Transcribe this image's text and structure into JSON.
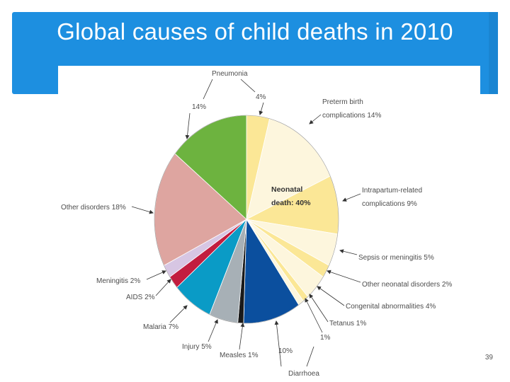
{
  "title": "Global causes of child deaths in 2010",
  "page_number": "39",
  "chart_data": {
    "type": "pie",
    "title": "Global causes of child deaths in 2010",
    "center_label_line1": "Neonatal",
    "center_label_line2": "death: 40%",
    "slices": [
      {
        "name": "Pneumonia (neonatal)",
        "value": 4,
        "color": "#fbe796",
        "pct_label": "4%",
        "label": "Pneumonia"
      },
      {
        "name": "Preterm birth complications",
        "value": 14,
        "color": "#fdf6dd",
        "label_line1": "Preterm birth",
        "label_line2": "complications 14%"
      },
      {
        "name": "Intrapartum-related complications",
        "value": 9,
        "color": "#fbe796",
        "label_line1": "Intrapartum-related",
        "label_line2": "complications 9%"
      },
      {
        "name": "Sepsis or meningitis",
        "value": 5,
        "color": "#fdf6dd",
        "label": "Sepsis or meningitis 5%"
      },
      {
        "name": "Other neonatal disorders",
        "value": 2,
        "color": "#fbe796",
        "label": "Other neonatal disorders 2%"
      },
      {
        "name": "Congenital abnormalities",
        "value": 4,
        "color": "#fdf6dd",
        "label": "Congenital abnormalities 4%"
      },
      {
        "name": "Tetanus",
        "value": 1,
        "color": "#fbe796",
        "label": "Tetanus 1%"
      },
      {
        "name": "Diarrhoea (neonatal)",
        "value": 1,
        "color": "#fdf6dd",
        "pct_label": "1%"
      },
      {
        "name": "Diarrhoea",
        "value": 10,
        "color": "#0b4f9e",
        "pct_label": "10%",
        "label": "Diarrhoea"
      },
      {
        "name": "Measles",
        "value": 1,
        "color": "#1a1a1a",
        "label": "Measles 1%"
      },
      {
        "name": "Injury",
        "value": 5,
        "color": "#a7b0b6",
        "label": "Injury 5%"
      },
      {
        "name": "Malaria",
        "value": 7,
        "color": "#0a9bc6",
        "label": "Malaria 7%"
      },
      {
        "name": "AIDS",
        "value": 2,
        "color": "#c21d3f",
        "label": "AIDS 2%"
      },
      {
        "name": "Meningitis",
        "value": 2,
        "color": "#d7c6e3",
        "label": "Meningitis 2%"
      },
      {
        "name": "Other disorders",
        "value": 18,
        "color": "#dea5a0",
        "label": "Other disorders 18%"
      },
      {
        "name": "Pneumonia",
        "value": 14,
        "color": "#6db33f",
        "pct_label": "14%"
      }
    ]
  }
}
